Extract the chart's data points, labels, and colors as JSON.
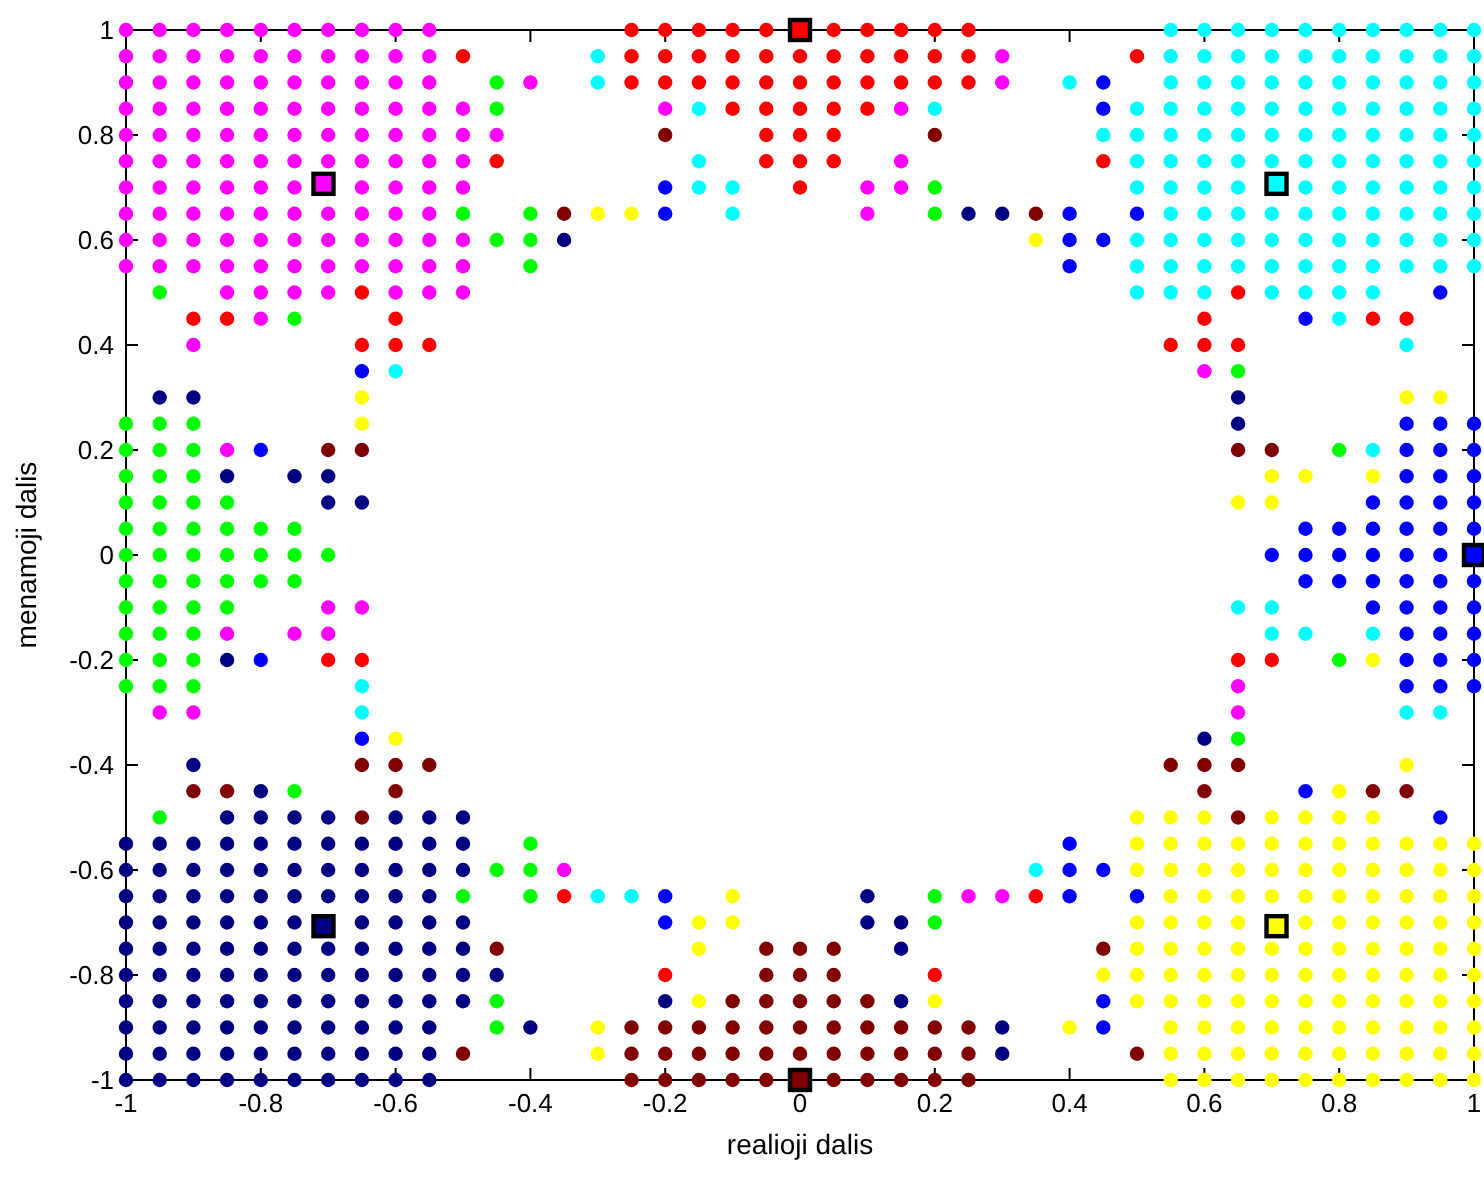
{
  "chart_data": {
    "type": "scatter",
    "xlabel": "realioji dalis",
    "ylabel": "menamoji dalis",
    "xlim": [
      -1,
      1
    ],
    "ylim": [
      -1,
      1
    ],
    "xticks": [
      -1,
      -0.8,
      -0.6,
      -0.4,
      -0.2,
      0,
      0.2,
      0.4,
      0.6,
      0.8,
      1
    ],
    "yticks": [
      -1,
      -0.8,
      -0.6,
      -0.4,
      -0.2,
      0,
      0.2,
      0.4,
      0.6,
      0.8,
      1
    ],
    "grid": false,
    "marker": "circle",
    "series": [
      {
        "color": "#ff00ff",
        "x": [
          -1,
          -0.95,
          -0.9,
          -0.85,
          -0.8,
          -0.75,
          -0.7,
          -0.65,
          -0.6,
          -0.55,
          -1,
          -0.95,
          -0.9,
          -0.85,
          -0.8,
          -0.75,
          -0.7,
          -0.65,
          -0.6,
          -0.55,
          0.3,
          -1,
          -0.95,
          -0.9,
          -0.85,
          -0.8,
          -0.75,
          -0.7,
          -0.65,
          -0.6,
          -0.55,
          -0.4,
          0.3,
          -1,
          -0.95,
          -0.9,
          -0.85,
          -0.8,
          -0.75,
          -0.7,
          -0.65,
          -0.6,
          -0.55,
          -0.5,
          -0.2,
          0.15,
          -1,
          -0.95,
          -0.9,
          -0.85,
          -0.8,
          -0.75,
          -0.7,
          -0.65,
          -0.6,
          -0.55,
          -0.5,
          -0.45,
          -1,
          -0.95,
          -0.9,
          -0.85,
          -0.8,
          -0.75,
          -0.7,
          -0.65,
          -0.6,
          -0.55,
          -0.5,
          0.15,
          -1,
          -0.95,
          -0.9,
          -0.85,
          -0.8,
          -0.75,
          -0.65,
          -0.6,
          -0.55,
          -0.5,
          0.1,
          0.15,
          -1,
          -0.95,
          -0.9,
          -0.85,
          -0.8,
          -0.75,
          -0.7,
          -0.65,
          -0.6,
          -0.55,
          0.1,
          -1,
          -0.95,
          -0.9,
          -0.85,
          -0.8,
          -0.75,
          -0.7,
          -0.65,
          -0.6,
          -0.55,
          -0.5,
          -1,
          -0.95,
          -0.9,
          -0.85,
          -0.8,
          -0.75,
          -0.7,
          -0.65,
          -0.6,
          -0.55,
          -0.5,
          -0.85,
          -0.8,
          -0.75,
          -0.7,
          -0.6,
          -0.55,
          -0.5,
          -0.8,
          -0.9,
          0.6,
          -0.85,
          -0.7,
          -0.65,
          -0.85,
          -0.75,
          -0.7,
          0.65,
          -0.95,
          -0.9,
          0.65,
          -0.35,
          0.25,
          0.3
        ],
        "values": [
          1,
          1,
          1,
          1,
          1,
          1,
          1,
          1,
          1,
          1,
          0.95,
          0.95,
          0.95,
          0.95,
          0.95,
          0.95,
          0.95,
          0.95,
          0.95,
          0.95,
          0.95,
          0.9,
          0.9,
          0.9,
          0.9,
          0.9,
          0.9,
          0.9,
          0.9,
          0.9,
          0.9,
          0.9,
          0.9,
          0.85,
          0.85,
          0.85,
          0.85,
          0.85,
          0.85,
          0.85,
          0.85,
          0.85,
          0.85,
          0.85,
          0.85,
          0.85,
          0.8,
          0.8,
          0.8,
          0.8,
          0.8,
          0.8,
          0.8,
          0.8,
          0.8,
          0.8,
          0.8,
          0.8,
          0.75,
          0.75,
          0.75,
          0.75,
          0.75,
          0.75,
          0.75,
          0.75,
          0.75,
          0.75,
          0.75,
          0.75,
          0.7,
          0.7,
          0.7,
          0.7,
          0.7,
          0.7,
          0.7,
          0.7,
          0.7,
          0.7,
          0.7,
          0.7,
          0.65,
          0.65,
          0.65,
          0.65,
          0.65,
          0.65,
          0.65,
          0.65,
          0.65,
          0.65,
          0.65,
          0.6,
          0.6,
          0.6,
          0.6,
          0.6,
          0.6,
          0.6,
          0.6,
          0.6,
          0.6,
          0.6,
          0.55,
          0.55,
          0.55,
          0.55,
          0.55,
          0.55,
          0.55,
          0.55,
          0.55,
          0.55,
          0.55,
          0.5,
          0.5,
          0.5,
          0.5,
          0.5,
          0.5,
          0.5,
          0.45,
          0.4,
          0.35,
          0.2,
          -0.1,
          -0.1,
          -0.15,
          -0.15,
          -0.15,
          -0.25,
          -0.3,
          -0.3,
          -0.3,
          -0.6,
          -0.65,
          -0.65
        ]
      },
      {
        "color": "#ff0000",
        "x": [
          -0.25,
          -0.2,
          -0.15,
          -0.1,
          -0.05,
          0.05,
          0.1,
          0.15,
          0.2,
          0.25,
          -0.5,
          -0.25,
          -0.2,
          -0.15,
          -0.1,
          -0.05,
          0,
          0.05,
          0.1,
          0.15,
          0.2,
          0.25,
          0.5,
          -0.25,
          -0.2,
          -0.15,
          -0.1,
          -0.05,
          0,
          0.05,
          0.1,
          0.15,
          0.2,
          0.25,
          -0.1,
          -0.05,
          0,
          0.05,
          0.1,
          -0.05,
          0,
          0.05,
          -0.45,
          -0.05,
          0,
          0.05,
          0.45,
          0,
          -0.65,
          0.65,
          -0.9,
          -0.85,
          -0.6,
          0.6,
          0.85,
          0.9,
          -0.65,
          -0.6,
          -0.55,
          0.55,
          0.6,
          0.65,
          -0.7,
          -0.65,
          0.65,
          0.7,
          -0.35,
          0.35,
          -0.2,
          0.2
        ],
        "values": [
          1,
          1,
          1,
          1,
          1,
          1,
          1,
          1,
          1,
          1,
          0.95,
          0.95,
          0.95,
          0.95,
          0.95,
          0.95,
          0.95,
          0.95,
          0.95,
          0.95,
          0.95,
          0.95,
          0.95,
          0.9,
          0.9,
          0.9,
          0.9,
          0.9,
          0.9,
          0.9,
          0.9,
          0.9,
          0.9,
          0.9,
          0.85,
          0.85,
          0.85,
          0.85,
          0.85,
          0.8,
          0.8,
          0.8,
          0.75,
          0.75,
          0.75,
          0.75,
          0.75,
          0.7,
          0.5,
          0.5,
          0.45,
          0.45,
          0.45,
          0.45,
          0.45,
          0.45,
          0.4,
          0.4,
          0.4,
          0.4,
          0.4,
          0.4,
          -0.2,
          -0.2,
          -0.2,
          -0.2,
          -0.65,
          -0.65,
          -0.8,
          -0.8
        ]
      },
      {
        "color": "#00ffff",
        "x": [
          0.55,
          0.6,
          0.65,
          0.7,
          0.75,
          0.8,
          0.85,
          0.9,
          0.95,
          1,
          -0.3,
          0.55,
          0.6,
          0.65,
          0.7,
          0.75,
          0.8,
          0.85,
          0.9,
          0.95,
          1,
          -0.3,
          0.4,
          0.55,
          0.6,
          0.65,
          0.7,
          0.75,
          0.8,
          0.85,
          0.9,
          0.95,
          1,
          -0.15,
          0.2,
          0.5,
          0.55,
          0.6,
          0.65,
          0.7,
          0.75,
          0.8,
          0.85,
          0.9,
          0.95,
          1,
          0.45,
          0.5,
          0.55,
          0.6,
          0.65,
          0.7,
          0.75,
          0.8,
          0.85,
          0.9,
          0.95,
          1,
          -0.15,
          0.5,
          0.55,
          0.6,
          0.65,
          0.7,
          0.75,
          0.8,
          0.85,
          0.9,
          0.95,
          1,
          -0.15,
          -0.1,
          0.5,
          0.55,
          0.6,
          0.65,
          0.75,
          0.8,
          0.85,
          0.9,
          0.95,
          1,
          -0.1,
          0.55,
          0.6,
          0.65,
          0.7,
          0.75,
          0.8,
          0.85,
          0.9,
          0.95,
          1,
          0.5,
          0.55,
          0.6,
          0.65,
          0.7,
          0.75,
          0.8,
          0.85,
          0.9,
          0.95,
          1,
          0.5,
          0.55,
          0.6,
          0.65,
          0.7,
          0.75,
          0.8,
          0.85,
          0.9,
          0.95,
          1,
          0.5,
          0.55,
          0.6,
          0.7,
          0.75,
          0.8,
          0.85,
          0.8,
          0.9,
          -0.6,
          0.85,
          0.65,
          0.7,
          0.7,
          0.75,
          0.85,
          -0.65,
          -0.65,
          0.9,
          0.95,
          0.35,
          -0.3,
          -0.25
        ],
        "values": [
          1,
          1,
          1,
          1,
          1,
          1,
          1,
          1,
          1,
          1,
          0.95,
          0.95,
          0.95,
          0.95,
          0.95,
          0.95,
          0.95,
          0.95,
          0.95,
          0.95,
          0.95,
          0.9,
          0.9,
          0.9,
          0.9,
          0.9,
          0.9,
          0.9,
          0.9,
          0.9,
          0.9,
          0.9,
          0.9,
          0.85,
          0.85,
          0.85,
          0.85,
          0.85,
          0.85,
          0.85,
          0.85,
          0.85,
          0.85,
          0.85,
          0.85,
          0.85,
          0.8,
          0.8,
          0.8,
          0.8,
          0.8,
          0.8,
          0.8,
          0.8,
          0.8,
          0.8,
          0.8,
          0.8,
          0.75,
          0.75,
          0.75,
          0.75,
          0.75,
          0.75,
          0.75,
          0.75,
          0.75,
          0.75,
          0.75,
          0.75,
          0.7,
          0.7,
          0.7,
          0.7,
          0.7,
          0.7,
          0.7,
          0.7,
          0.7,
          0.7,
          0.7,
          0.7,
          0.65,
          0.65,
          0.65,
          0.65,
          0.65,
          0.65,
          0.65,
          0.65,
          0.65,
          0.65,
          0.65,
          0.6,
          0.6,
          0.6,
          0.6,
          0.6,
          0.6,
          0.6,
          0.6,
          0.6,
          0.6,
          0.6,
          0.55,
          0.55,
          0.55,
          0.55,
          0.55,
          0.55,
          0.55,
          0.55,
          0.55,
          0.55,
          0.55,
          0.5,
          0.5,
          0.5,
          0.5,
          0.5,
          0.5,
          0.5,
          0.45,
          0.4,
          0.35,
          0.2,
          -0.1,
          -0.1,
          -0.15,
          -0.15,
          -0.15,
          -0.25,
          -0.3,
          -0.3,
          -0.3,
          -0.6,
          -0.65,
          -0.65
        ]
      },
      {
        "color": "#0000ff",
        "x": [
          0.45,
          0.45,
          -0.2,
          -0.2,
          0.4,
          0.5,
          0.4,
          0.45,
          0.4,
          0.95,
          0.75,
          -0.65,
          0.9,
          0.95,
          1,
          -0.8,
          0.9,
          0.95,
          1,
          0.9,
          0.95,
          1,
          0.85,
          0.9,
          0.95,
          1,
          0.75,
          0.8,
          0.85,
          0.9,
          0.95,
          1,
          0.7,
          0.75,
          0.8,
          0.85,
          0.9,
          0.95,
          0.75,
          0.8,
          0.85,
          0.9,
          0.95,
          1,
          0.85,
          0.9,
          0.95,
          1,
          0.9,
          0.95,
          1,
          -0.8,
          0.9,
          0.95,
          1,
          0.9,
          0.95,
          1,
          -0.65,
          0.75,
          0.95,
          0.4,
          0.4,
          0.45,
          -0.2,
          0.4,
          0.5,
          -0.2,
          0.45,
          0.45
        ],
        "values": [
          0.9,
          0.85,
          0.7,
          0.65,
          0.65,
          0.65,
          0.6,
          0.6,
          0.55,
          0.5,
          0.45,
          0.35,
          0.25,
          0.25,
          0.25,
          0.2,
          0.2,
          0.2,
          0.2,
          0.15,
          0.15,
          0.15,
          0.1,
          0.1,
          0.1,
          0.1,
          0.05,
          0.05,
          0.05,
          0.05,
          0.05,
          0.05,
          0,
          0,
          0,
          0,
          0,
          0,
          -0.05,
          -0.05,
          -0.05,
          -0.05,
          -0.05,
          -0.05,
          -0.1,
          -0.1,
          -0.1,
          -0.1,
          -0.15,
          -0.15,
          -0.15,
          -0.2,
          -0.2,
          -0.2,
          -0.2,
          -0.25,
          -0.25,
          -0.25,
          -0.35,
          -0.45,
          -0.5,
          -0.55,
          -0.6,
          -0.6,
          -0.65,
          -0.65,
          -0.65,
          -0.7,
          -0.85,
          -0.9
        ]
      },
      {
        "color": "#000080",
        "x": [
          0.25,
          0.3,
          -0.35,
          -0.95,
          -0.9,
          0.65,
          0.65,
          -0.85,
          -0.75,
          -0.7,
          -0.7,
          -0.65,
          -0.85,
          0.6,
          -0.9,
          -0.8,
          -0.85,
          -0.8,
          -0.75,
          -0.7,
          -0.6,
          -0.55,
          -0.5,
          -1,
          -0.95,
          -0.9,
          -0.85,
          -0.8,
          -0.75,
          -0.7,
          -0.65,
          -0.6,
          -0.55,
          -0.5,
          -1,
          -0.95,
          -0.9,
          -0.85,
          -0.8,
          -0.75,
          -0.7,
          -0.65,
          -0.6,
          -0.55,
          -0.5,
          -1,
          -0.95,
          -0.9,
          -0.85,
          -0.8,
          -0.75,
          -0.7,
          -0.65,
          -0.6,
          -0.55,
          0.1,
          -1,
          -0.95,
          -0.9,
          -0.85,
          -0.8,
          -0.75,
          -0.65,
          -0.6,
          -0.55,
          -0.5,
          0.1,
          0.15,
          -1,
          -0.95,
          -0.9,
          -0.85,
          -0.8,
          -0.75,
          -0.7,
          -0.65,
          -0.6,
          -0.55,
          -0.5,
          0.15,
          -1,
          -0.95,
          -0.9,
          -0.85,
          -0.8,
          -0.75,
          -0.7,
          -0.65,
          -0.6,
          -0.55,
          -0.5,
          -0.45,
          -1,
          -0.95,
          -0.9,
          -0.85,
          -0.8,
          -0.75,
          -0.7,
          -0.65,
          -0.6,
          -0.55,
          -0.5,
          -0.2,
          0.15,
          -1,
          -0.95,
          -0.9,
          -0.85,
          -0.8,
          -0.75,
          -0.7,
          -0.65,
          -0.6,
          -0.55,
          -0.4,
          0.3,
          -1,
          -0.95,
          -0.9,
          -0.85,
          -0.8,
          -0.75,
          -0.7,
          -0.65,
          -0.6,
          -0.55,
          0.3,
          -1,
          -0.95,
          -0.9,
          -0.85,
          -0.8,
          -0.75,
          -0.7,
          -0.65,
          -0.6,
          -0.55
        ],
        "values": [
          0.65,
          0.65,
          0.6,
          0.3,
          0.3,
          0.3,
          0.25,
          0.15,
          0.15,
          0.15,
          0.1,
          0.1,
          -0.2,
          -0.35,
          -0.4,
          -0.45,
          -0.5,
          -0.5,
          -0.5,
          -0.5,
          -0.5,
          -0.5,
          -0.5,
          -0.55,
          -0.55,
          -0.55,
          -0.55,
          -0.55,
          -0.55,
          -0.55,
          -0.55,
          -0.55,
          -0.55,
          -0.55,
          -0.6,
          -0.6,
          -0.6,
          -0.6,
          -0.6,
          -0.6,
          -0.6,
          -0.6,
          -0.6,
          -0.6,
          -0.6,
          -0.65,
          -0.65,
          -0.65,
          -0.65,
          -0.65,
          -0.65,
          -0.65,
          -0.65,
          -0.65,
          -0.65,
          -0.65,
          -0.7,
          -0.7,
          -0.7,
          -0.7,
          -0.7,
          -0.7,
          -0.7,
          -0.7,
          -0.7,
          -0.7,
          -0.7,
          -0.7,
          -0.75,
          -0.75,
          -0.75,
          -0.75,
          -0.75,
          -0.75,
          -0.75,
          -0.75,
          -0.75,
          -0.75,
          -0.75,
          -0.75,
          -0.8,
          -0.8,
          -0.8,
          -0.8,
          -0.8,
          -0.8,
          -0.8,
          -0.8,
          -0.8,
          -0.8,
          -0.8,
          -0.8,
          -0.85,
          -0.85,
          -0.85,
          -0.85,
          -0.85,
          -0.85,
          -0.85,
          -0.85,
          -0.85,
          -0.85,
          -0.85,
          -0.85,
          -0.85,
          -0.9,
          -0.9,
          -0.9,
          -0.9,
          -0.9,
          -0.9,
          -0.9,
          -0.9,
          -0.9,
          -0.9,
          -0.9,
          -0.9,
          -0.95,
          -0.95,
          -0.95,
          -0.95,
          -0.95,
          -0.95,
          -0.95,
          -0.95,
          -0.95,
          -0.95,
          -0.95,
          -1,
          -1,
          -1,
          -1,
          -1,
          -1,
          -1,
          -1,
          -1,
          -1
        ]
      },
      {
        "color": "#00ff00",
        "x": [
          -0.45,
          -0.45,
          0.2,
          -0.5,
          -0.4,
          0.2,
          -0.45,
          -0.4,
          -0.4,
          -0.95,
          -0.75,
          0.65,
          -1,
          -0.95,
          -0.9,
          -1,
          -0.95,
          -0.9,
          0.8,
          -1,
          -0.95,
          -0.9,
          -1,
          -0.95,
          -0.9,
          -0.85,
          -1,
          -0.95,
          -0.9,
          -0.85,
          -0.8,
          -0.75,
          -1,
          -0.95,
          -0.9,
          -0.85,
          -0.8,
          -0.75,
          -0.7,
          -1,
          -0.95,
          -0.9,
          -0.85,
          -0.8,
          -0.75,
          -1,
          -0.95,
          -0.9,
          -0.85,
          -1,
          -0.95,
          -0.9,
          -1,
          -0.95,
          -0.9,
          0.8,
          -1,
          -0.95,
          -0.9,
          0.65,
          -0.75,
          -0.95,
          -0.4,
          -0.45,
          -0.4,
          -0.5,
          -0.4,
          0.2,
          0.2,
          -0.45,
          -0.45
        ],
        "values": [
          0.9,
          0.85,
          0.7,
          0.65,
          0.65,
          0.65,
          0.6,
          0.6,
          0.55,
          0.5,
          0.45,
          0.35,
          0.25,
          0.25,
          0.25,
          0.2,
          0.2,
          0.2,
          0.2,
          0.15,
          0.15,
          0.15,
          0.1,
          0.1,
          0.1,
          0.1,
          0.05,
          0.05,
          0.05,
          0.05,
          0.05,
          0.05,
          0,
          0,
          0,
          0,
          0,
          0,
          0,
          -0.05,
          -0.05,
          -0.05,
          -0.05,
          -0.05,
          -0.05,
          -0.1,
          -0.1,
          -0.1,
          -0.1,
          -0.15,
          -0.15,
          -0.15,
          -0.2,
          -0.2,
          -0.2,
          -0.2,
          -0.25,
          -0.25,
          -0.25,
          -0.35,
          -0.45,
          -0.5,
          -0.55,
          -0.6,
          -0.6,
          -0.65,
          -0.65,
          -0.65,
          -0.7,
          -0.85,
          -0.9
        ]
      },
      {
        "color": "#800000",
        "x": [
          -0.2,
          0.2,
          -0.35,
          0.35,
          -0.7,
          -0.65,
          0.65,
          0.7,
          -0.65,
          -0.6,
          -0.55,
          0.55,
          0.6,
          0.65,
          -0.9,
          -0.85,
          -0.6,
          0.6,
          0.85,
          0.9,
          -0.65,
          0.65,
          -0.45,
          -0.05,
          0,
          0.05,
          0.45,
          -0.05,
          0,
          0.05,
          -0.1,
          -0.05,
          0,
          0.05,
          0.1,
          -0.25,
          -0.2,
          -0.15,
          -0.1,
          -0.05,
          0,
          0.05,
          0.1,
          0.15,
          0.2,
          0.25,
          -0.5,
          -0.25,
          -0.2,
          -0.15,
          -0.1,
          -0.05,
          0,
          0.05,
          0.1,
          0.15,
          0.2,
          0.25,
          0.5,
          -0.25,
          -0.2,
          -0.15,
          -0.1,
          -0.05,
          0.05,
          0.1,
          0.15,
          0.2,
          0.25
        ],
        "values": [
          0.8,
          0.8,
          0.65,
          0.65,
          0.2,
          0.2,
          0.2,
          0.2,
          -0.4,
          -0.4,
          -0.4,
          -0.4,
          -0.4,
          -0.4,
          -0.45,
          -0.45,
          -0.45,
          -0.45,
          -0.45,
          -0.45,
          -0.5,
          -0.5,
          -0.75,
          -0.75,
          -0.75,
          -0.75,
          -0.75,
          -0.8,
          -0.8,
          -0.8,
          -0.85,
          -0.85,
          -0.85,
          -0.85,
          -0.85,
          -0.9,
          -0.9,
          -0.9,
          -0.9,
          -0.9,
          -0.9,
          -0.9,
          -0.9,
          -0.9,
          -0.9,
          -0.9,
          -0.95,
          -0.95,
          -0.95,
          -0.95,
          -0.95,
          -0.95,
          -0.95,
          -0.95,
          -0.95,
          -0.95,
          -0.95,
          -0.95,
          -0.95,
          -1,
          -1,
          -1,
          -1,
          -1,
          -1,
          -1,
          -1,
          -1,
          -1
        ]
      },
      {
        "color": "#ffff00",
        "x": [
          -0.3,
          -0.25,
          0.35,
          -0.65,
          0.9,
          0.95,
          -0.65,
          0.7,
          0.75,
          0.85,
          0.65,
          0.7,
          0.85,
          -0.6,
          0.9,
          0.8,
          0.5,
          0.55,
          0.6,
          0.7,
          0.75,
          0.8,
          0.85,
          0.5,
          0.55,
          0.6,
          0.65,
          0.7,
          0.75,
          0.8,
          0.85,
          0.9,
          0.95,
          1,
          0.5,
          0.55,
          0.6,
          0.65,
          0.7,
          0.75,
          0.8,
          0.85,
          0.9,
          0.95,
          1,
          -0.1,
          0.55,
          0.6,
          0.65,
          0.7,
          0.75,
          0.8,
          0.85,
          0.9,
          0.95,
          1,
          -0.15,
          -0.1,
          0.5,
          0.55,
          0.6,
          0.65,
          0.75,
          0.8,
          0.85,
          0.9,
          0.95,
          1,
          -0.15,
          0.5,
          0.55,
          0.6,
          0.65,
          0.7,
          0.75,
          0.8,
          0.85,
          0.9,
          0.95,
          1,
          0.45,
          0.5,
          0.55,
          0.6,
          0.65,
          0.7,
          0.75,
          0.8,
          0.85,
          0.9,
          0.95,
          1,
          -0.15,
          0.2,
          0.5,
          0.55,
          0.6,
          0.65,
          0.7,
          0.75,
          0.8,
          0.85,
          0.9,
          0.95,
          1,
          -0.3,
          0.4,
          0.55,
          0.6,
          0.65,
          0.7,
          0.75,
          0.8,
          0.85,
          0.9,
          0.95,
          1,
          -0.3,
          0.55,
          0.6,
          0.65,
          0.7,
          0.75,
          0.8,
          0.85,
          0.9,
          0.95,
          1,
          0.55,
          0.6,
          0.65,
          0.7,
          0.75,
          0.8,
          0.85,
          0.9,
          0.95,
          1
        ],
        "values": [
          0.65,
          0.65,
          0.6,
          0.3,
          0.3,
          0.3,
          0.25,
          0.15,
          0.15,
          0.15,
          0.1,
          0.1,
          -0.2,
          -0.35,
          -0.4,
          -0.45,
          -0.5,
          -0.5,
          -0.5,
          -0.5,
          -0.5,
          -0.5,
          -0.5,
          -0.55,
          -0.55,
          -0.55,
          -0.55,
          -0.55,
          -0.55,
          -0.55,
          -0.55,
          -0.55,
          -0.55,
          -0.55,
          -0.6,
          -0.6,
          -0.6,
          -0.6,
          -0.6,
          -0.6,
          -0.6,
          -0.6,
          -0.6,
          -0.6,
          -0.6,
          -0.65,
          -0.65,
          -0.65,
          -0.65,
          -0.65,
          -0.65,
          -0.65,
          -0.65,
          -0.65,
          -0.65,
          -0.65,
          -0.7,
          -0.7,
          -0.7,
          -0.7,
          -0.7,
          -0.7,
          -0.7,
          -0.7,
          -0.7,
          -0.7,
          -0.7,
          -0.7,
          -0.75,
          -0.75,
          -0.75,
          -0.75,
          -0.75,
          -0.75,
          -0.75,
          -0.75,
          -0.75,
          -0.75,
          -0.75,
          -0.75,
          -0.8,
          -0.8,
          -0.8,
          -0.8,
          -0.8,
          -0.8,
          -0.8,
          -0.8,
          -0.8,
          -0.8,
          -0.8,
          -0.8,
          -0.85,
          -0.85,
          -0.85,
          -0.85,
          -0.85,
          -0.85,
          -0.85,
          -0.85,
          -0.85,
          -0.85,
          -0.85,
          -0.85,
          -0.85,
          -0.9,
          -0.9,
          -0.9,
          -0.9,
          -0.9,
          -0.9,
          -0.9,
          -0.9,
          -0.9,
          -0.9,
          -0.9,
          -0.9,
          -0.95,
          -0.95,
          -0.95,
          -0.95,
          -0.95,
          -0.95,
          -0.95,
          -0.95,
          -0.95,
          -0.95,
          -0.95,
          -1,
          -1,
          -1,
          -1,
          -1,
          -1,
          -1,
          -1,
          -1,
          -1
        ]
      },
      {
        "marker": "square",
        "x": [
          1,
          0.707,
          0,
          -0.707,
          -0.707,
          0,
          0.707
        ],
        "values": [
          0,
          0.707,
          1,
          0.707,
          -0.707,
          -1,
          -0.707
        ],
        "colors": [
          "#0000ff",
          "#00ffff",
          "#ff0000",
          "#ff00ff",
          "#000080",
          "#800000",
          "#ffff00"
        ]
      }
    ]
  }
}
